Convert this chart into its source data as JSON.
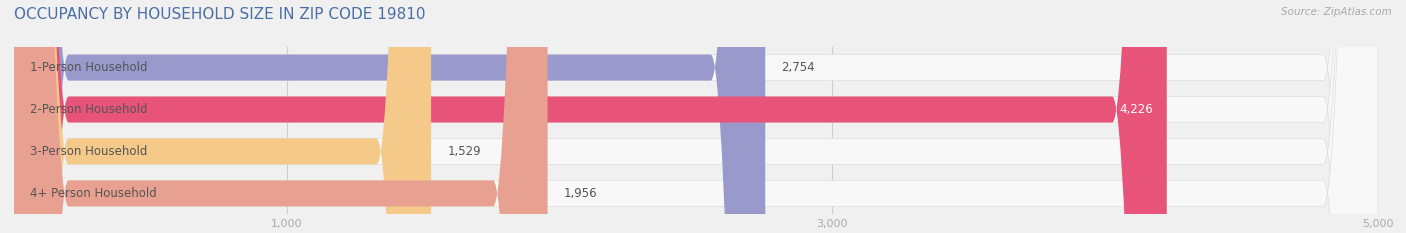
{
  "title": "OCCUPANCY BY HOUSEHOLD SIZE IN ZIP CODE 19810",
  "source": "Source: ZipAtlas.com",
  "categories": [
    "1-Person Household",
    "2-Person Household",
    "3-Person Household",
    "4+ Person Household"
  ],
  "values": [
    2754,
    4226,
    1529,
    1956
  ],
  "bar_colors": [
    "#9999cc",
    "#e8537a",
    "#f5c98a",
    "#e8a090"
  ],
  "background_color": "#f0f0f0",
  "bar_background_color": "#f8f8f8",
  "xlim": [
    0,
    5000
  ],
  "xticks": [
    1000,
    3000,
    5000
  ],
  "title_fontsize": 11,
  "label_fontsize": 8.5,
  "value_fontsize": 8.5,
  "title_color": "#4a6fa5",
  "source_color": "#aaaaaa",
  "label_color": "#555555"
}
